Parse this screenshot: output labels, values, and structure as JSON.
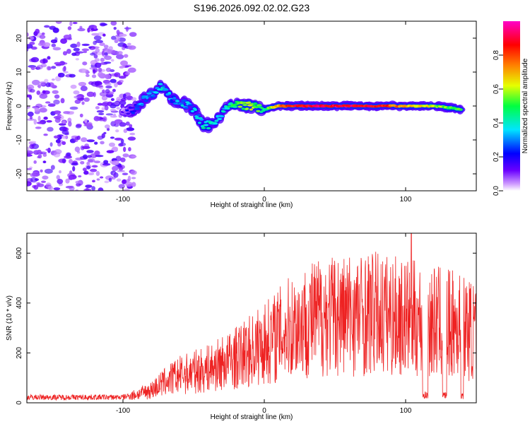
{
  "title": "S196.2026.092.02.02.G23",
  "chart_data": [
    {
      "type": "heatmap",
      "name": "spectrogram",
      "xlabel": "Height of straight line (km)",
      "ylabel": "Frequency (Hz)",
      "xlim": [
        -168,
        150
      ],
      "ylim": [
        -25,
        25
      ],
      "xticks": [
        -100,
        0,
        100
      ],
      "yticks": [
        -20,
        -10,
        0,
        10,
        20
      ],
      "grid": false,
      "colorbar": {
        "label": "Normalized spectral amplitude",
        "range": [
          0,
          1
        ],
        "ticks": [
          0.0,
          0.2,
          0.4,
          0.6,
          0.8
        ],
        "colors": [
          "#ffffff",
          "#cf9cff",
          "#6a00ff",
          "#0000ff",
          "#00e5ff",
          "#00ff40",
          "#e6ff00",
          "#ff8000",
          "#ff0000",
          "#ff00c8"
        ]
      },
      "signal_track": [
        {
          "x": -100,
          "f": -2.0,
          "a": 0.1
        },
        {
          "x": -92,
          "f": -1.0,
          "a": 0.25
        },
        {
          "x": -85,
          "f": 2.0,
          "a": 0.3
        },
        {
          "x": -78,
          "f": 4.0,
          "a": 0.3
        },
        {
          "x": -72,
          "f": 6.0,
          "a": 0.35
        },
        {
          "x": -65,
          "f": 2.0,
          "a": 0.3
        },
        {
          "x": -58,
          "f": 1.0,
          "a": 0.35
        },
        {
          "x": -50,
          "f": -1.0,
          "a": 0.3
        },
        {
          "x": -43,
          "f": -6.0,
          "a": 0.4
        },
        {
          "x": -36,
          "f": -5.0,
          "a": 0.35
        },
        {
          "x": -28,
          "f": -1.0,
          "a": 0.4
        },
        {
          "x": -20,
          "f": 0.5,
          "a": 0.5
        },
        {
          "x": -10,
          "f": 0.0,
          "a": 0.6
        },
        {
          "x": 0,
          "f": -1.0,
          "a": 0.45
        },
        {
          "x": 10,
          "f": 0.0,
          "a": 0.7
        },
        {
          "x": 20,
          "f": 0.0,
          "a": 0.85
        },
        {
          "x": 40,
          "f": 0.0,
          "a": 0.9
        },
        {
          "x": 60,
          "f": 0.0,
          "a": 0.9
        },
        {
          "x": 80,
          "f": 0.0,
          "a": 0.85
        },
        {
          "x": 100,
          "f": 0.0,
          "a": 0.7
        },
        {
          "x": 120,
          "f": 0.0,
          "a": 0.6
        },
        {
          "x": 140,
          "f": -1.0,
          "a": 0.5
        }
      ],
      "noise_region_x": [
        -168,
        -100
      ]
    },
    {
      "type": "line",
      "name": "snr",
      "xlabel": "Height of straight line (km)",
      "ylabel": "SNR (10 * v/v)",
      "xlim": [
        -168,
        150
      ],
      "ylim": [
        0,
        680
      ],
      "xticks": [
        -100,
        0,
        100
      ],
      "yticks": [
        0,
        200,
        400,
        600
      ],
      "grid": false,
      "color": "#ee2222",
      "envelope": [
        {
          "x": -168,
          "y": 25
        },
        {
          "x": -100,
          "y": 25
        },
        {
          "x": -90,
          "y": 40
        },
        {
          "x": -80,
          "y": 60
        },
        {
          "x": -70,
          "y": 100
        },
        {
          "x": -60,
          "y": 130
        },
        {
          "x": -40,
          "y": 160
        },
        {
          "x": -20,
          "y": 210
        },
        {
          "x": 0,
          "y": 280
        },
        {
          "x": 20,
          "y": 360
        },
        {
          "x": 40,
          "y": 410
        },
        {
          "x": 60,
          "y": 420
        },
        {
          "x": 80,
          "y": 420
        },
        {
          "x": 100,
          "y": 400
        },
        {
          "x": 120,
          "y": 380
        },
        {
          "x": 140,
          "y": 360
        },
        {
          "x": 150,
          "y": 330
        }
      ],
      "peak": {
        "x": 104,
        "y": 680
      },
      "dropouts": [
        {
          "x0": 112,
          "x1": 116,
          "y": 30
        },
        {
          "x0": 126,
          "x1": 129,
          "y": 30
        },
        {
          "x0": 139,
          "x1": 141,
          "y": 30
        }
      ]
    }
  ]
}
